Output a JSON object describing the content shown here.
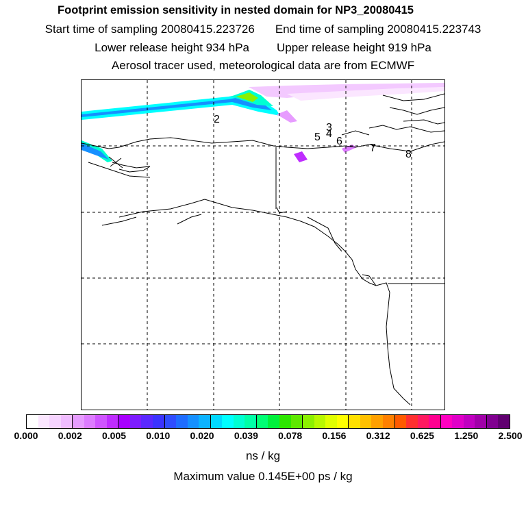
{
  "title": "Footprint emission sensitivity in nested domain for NP3_20080415",
  "start_time": "Start time of sampling 20080415.223726",
  "end_time": "End time of sampling 20080415.223743",
  "lower_release": "Lower release height  934 hPa",
  "upper_release": "Upper release height  919 hPa",
  "tracer_note": "Aerosol tracer used, meteorological data are from ECMWF",
  "release_labels": [
    "2",
    "3",
    "4",
    "5",
    "6",
    "7",
    "8"
  ],
  "legend": {
    "tick_labels": [
      "0.000",
      "0.002",
      "0.005",
      "0.010",
      "0.020",
      "0.039",
      "0.078",
      "0.156",
      "0.312",
      "0.625",
      "1.250",
      "2.500"
    ],
    "colors": [
      "#ffffff",
      "#fbe6ff",
      "#f6d4ff",
      "#f0bcff",
      "#e79cff",
      "#dd7cff",
      "#cf55ff",
      "#bf2dff",
      "#a800ff",
      "#7d1cff",
      "#5a28ff",
      "#3b33ff",
      "#2f4dff",
      "#1f6dff",
      "#1690ff",
      "#0cb3ff",
      "#00d8ff",
      "#00ffff",
      "#00ffd2",
      "#00ffa6",
      "#00ff74",
      "#00f03c",
      "#2de600",
      "#5ee800",
      "#8cf000",
      "#b8f800",
      "#e0ff00",
      "#ffff00",
      "#ffe000",
      "#ffc000",
      "#ffa000",
      "#ff8000",
      "#ff5a00",
      "#ff3030",
      "#ff1a60",
      "#ff0090",
      "#ff00c0",
      "#e000c8",
      "#c000c0",
      "#a000a8",
      "#800090",
      "#600070"
    ],
    "units": "ns / kg"
  },
  "max_value": "Maximum value  0.145E+00 ps / kg"
}
